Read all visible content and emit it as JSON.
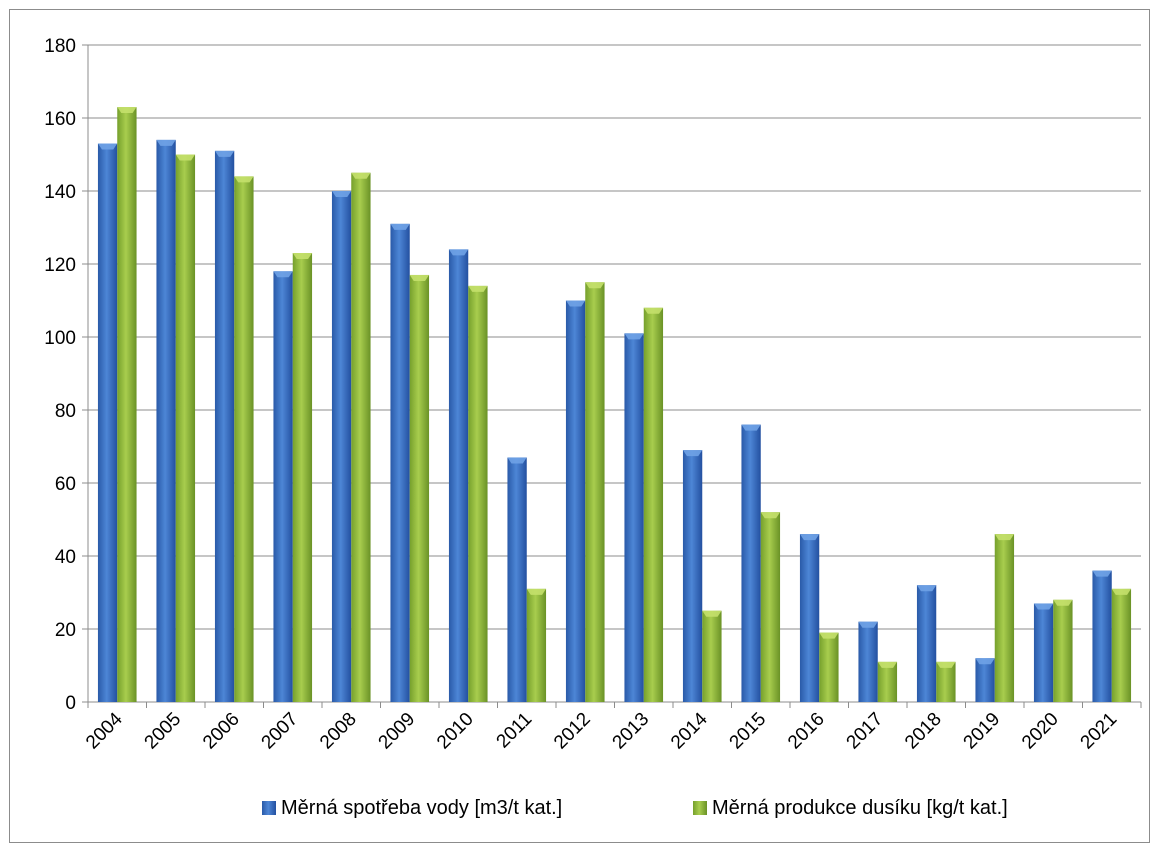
{
  "chart_data": {
    "type": "bar",
    "categories": [
      "2004",
      "2005",
      "2006",
      "2007",
      "2008",
      "2009",
      "2010",
      "2011",
      "2012",
      "2013",
      "2014",
      "2015",
      "2016",
      "2017",
      "2018",
      "2019",
      "2020",
      "2021"
    ],
    "series": [
      {
        "name": "Měrná spotřeba vody [m3/t kat.]",
        "color": "#3a6fc0",
        "values": [
          153,
          154,
          151,
          118,
          140,
          131,
          124,
          67,
          110,
          101,
          69,
          76,
          46,
          22,
          32,
          12,
          27,
          36
        ]
      },
      {
        "name": "Měrná produkce dusíku [kg/t kat.]",
        "color": "#8db43a",
        "values": [
          163,
          150,
          144,
          123,
          145,
          117,
          114,
          31,
          115,
          108,
          25,
          52,
          19,
          11,
          11,
          46,
          28,
          31
        ]
      }
    ],
    "ylim": [
      0,
      180
    ],
    "yticks": [
      0,
      20,
      40,
      60,
      80,
      100,
      120,
      140,
      160,
      180
    ],
    "grid": true,
    "legend_position": "bottom"
  }
}
